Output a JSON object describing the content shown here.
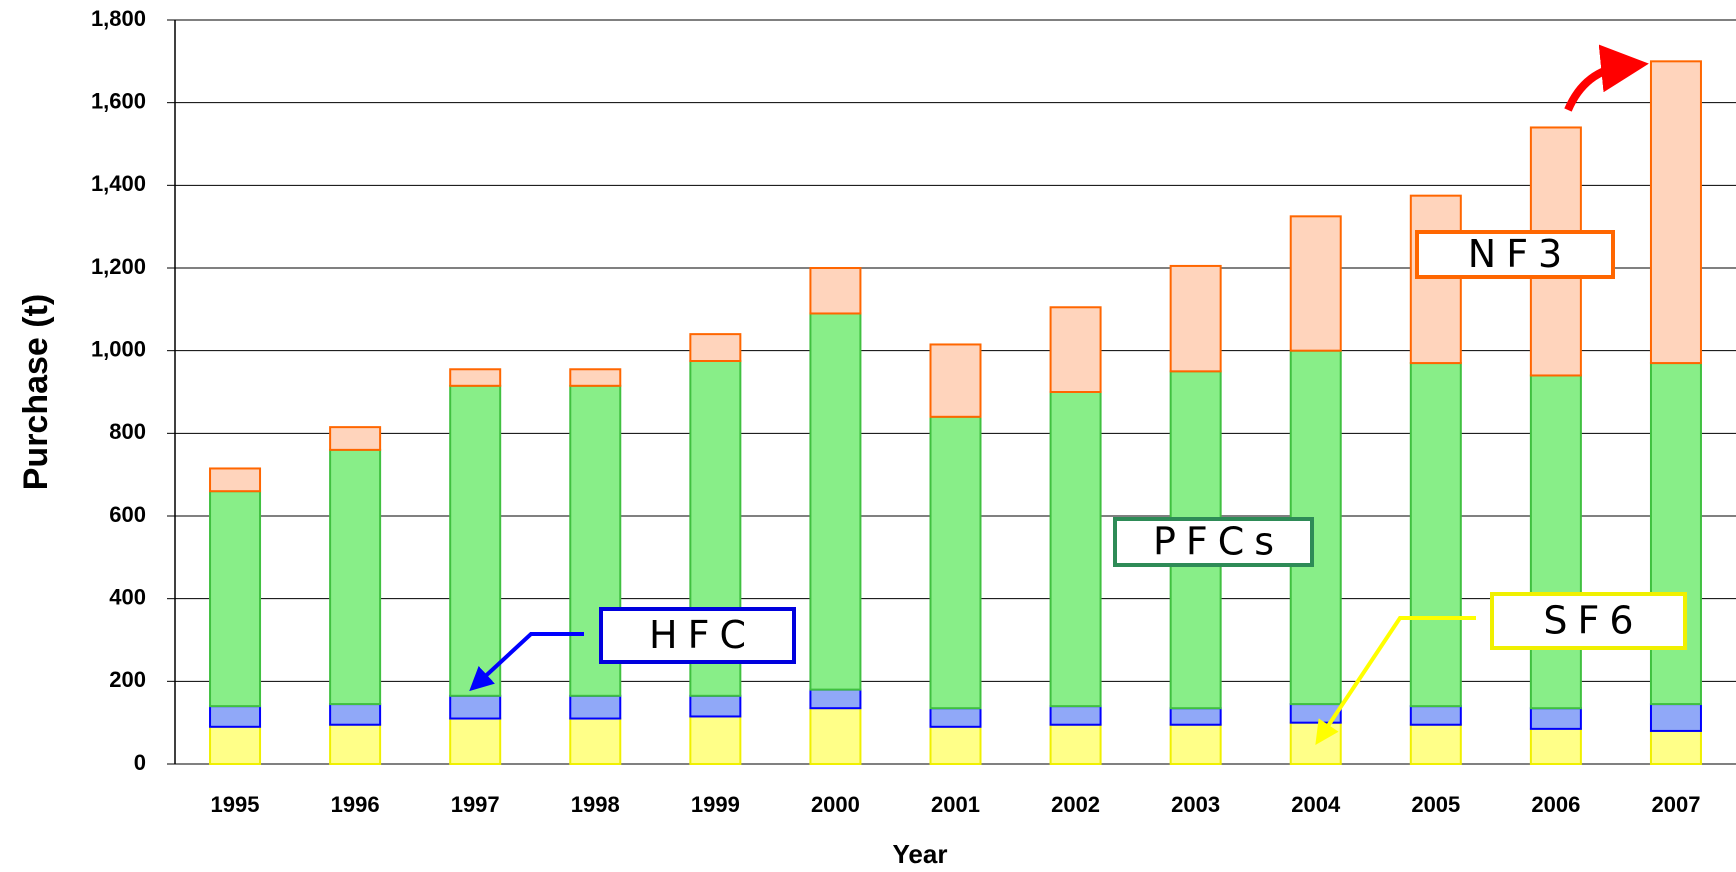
{
  "chart_data": {
    "type": "stacked_bar",
    "x_label": "Year",
    "y_label": "Purchase (t)",
    "categories": [
      "1995",
      "1996",
      "1997",
      "1998",
      "1999",
      "2000",
      "2001",
      "2002",
      "2003",
      "2004",
      "2005",
      "2006",
      "2007"
    ],
    "series": [
      {
        "name": "SF6",
        "color": "#ffff88",
        "edge_color": "#f0f000",
        "values": [
          90,
          95,
          110,
          110,
          115,
          135,
          90,
          95,
          95,
          100,
          95,
          85,
          80
        ]
      },
      {
        "name": "HFC",
        "color": "#90a8f8",
        "edge_color": "#0000ff",
        "values": [
          50,
          50,
          55,
          55,
          50,
          45,
          45,
          45,
          40,
          45,
          45,
          50,
          65
        ]
      },
      {
        "name": "PFCs",
        "color": "#88ee88",
        "edge_color": "#40c040",
        "values": [
          520,
          615,
          750,
          750,
          810,
          910,
          705,
          760,
          815,
          855,
          830,
          805,
          825
        ]
      },
      {
        "name": "NF3",
        "color": "#ffd4bc",
        "edge_color": "#ff6600",
        "values": [
          55,
          55,
          40,
          40,
          65,
          110,
          175,
          205,
          255,
          325,
          405,
          600,
          730
        ]
      }
    ],
    "ylim": [
      0,
      1800
    ],
    "yticks": [
      0,
      200,
      400,
      600,
      800,
      {
        "value": 1000,
        "label": "1,000"
      },
      {
        "value": 1200,
        "label": "1,200"
      },
      {
        "value": 1400,
        "label": "1,400"
      },
      {
        "value": 1600,
        "label": "1,600"
      },
      {
        "value": 1800,
        "label": "1,800"
      }
    ],
    "grid": true
  }
}
